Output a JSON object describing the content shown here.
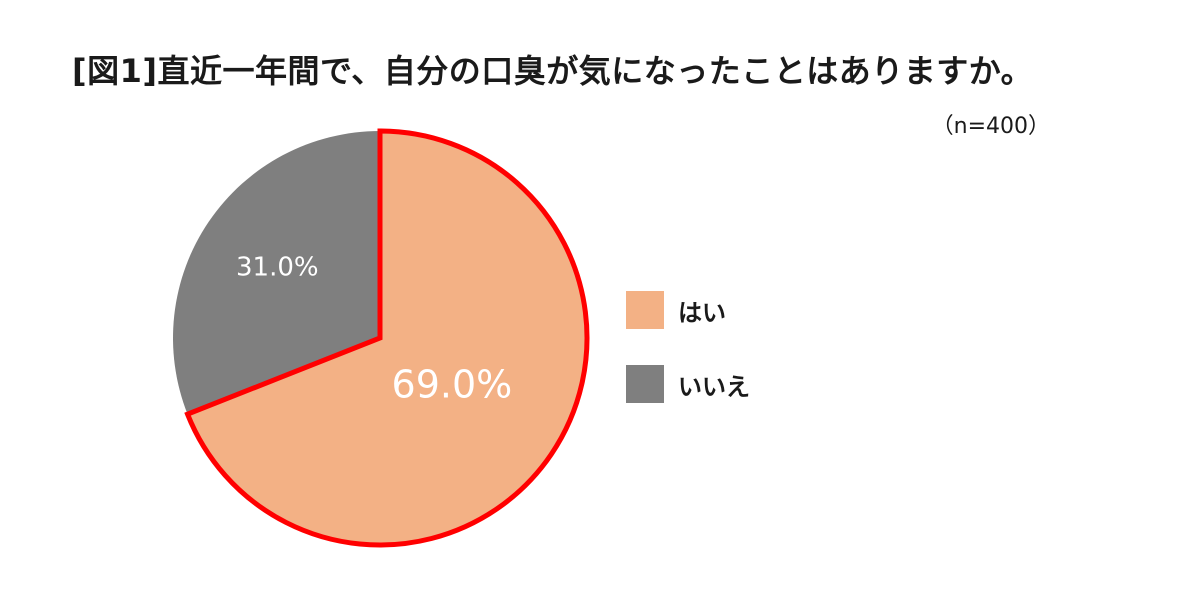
{
  "chart_data": {
    "type": "pie",
    "title": "[図1]直近一年間で、自分の口臭が気になったことはありますか。",
    "subtitle": "（n=400）",
    "unit": "%",
    "slices": [
      {
        "label": "はい",
        "value": 69.0,
        "value_label": "69.0%",
        "color": "#F3B185",
        "highlighted": true
      },
      {
        "label": "いいえ",
        "value": 31.0,
        "value_label": "31.0%",
        "color": "#7F7F7F",
        "highlighted": false
      }
    ],
    "start_angle": "12 o'clock",
    "direction": "clockwise",
    "highlight_outline_color": "#FF0000",
    "data_label_color": "#FFFFFF",
    "legend_position": "right"
  }
}
